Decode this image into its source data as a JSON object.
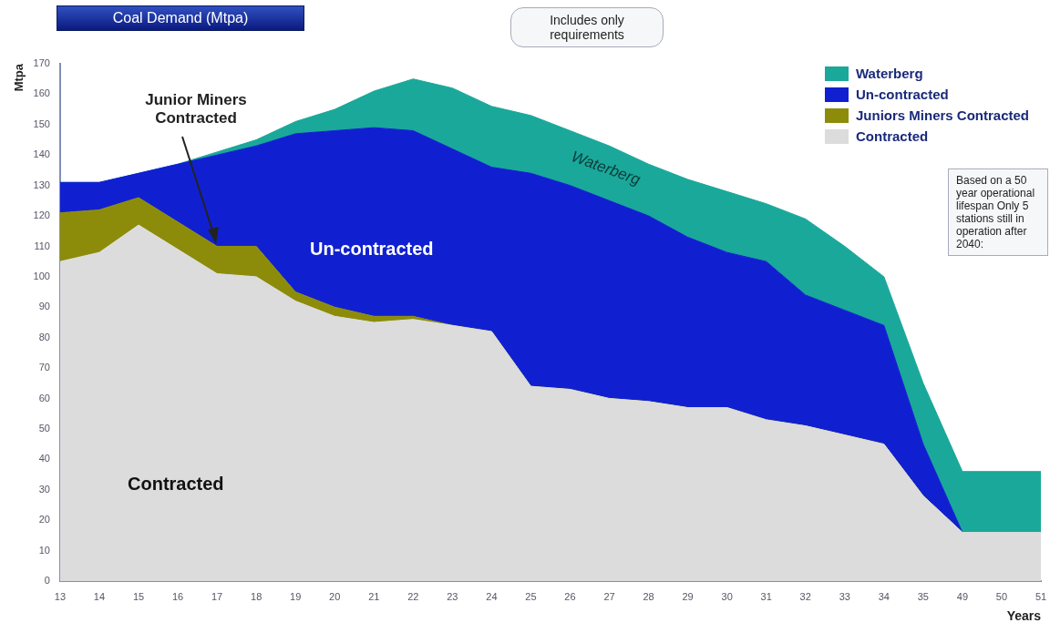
{
  "chart_data": {
    "type": "area",
    "title": "Coal Demand (Mtpa)",
    "ylabel": "Mtpa",
    "xlabel": "Years",
    "categories": [
      "13",
      "14",
      "15",
      "16",
      "17",
      "18",
      "19",
      "20",
      "21",
      "22",
      "23",
      "24",
      "25",
      "26",
      "27",
      "28",
      "29",
      "30",
      "31",
      "32",
      "33",
      "34",
      "35",
      "49",
      "50",
      "51"
    ],
    "stacked": true,
    "ylim": [
      0,
      170
    ],
    "yticks": [
      0,
      10,
      20,
      30,
      40,
      50,
      60,
      70,
      80,
      90,
      100,
      110,
      120,
      130,
      140,
      150,
      160,
      170
    ],
    "grid": false,
    "legend": "top right",
    "series": [
      {
        "name": "Contracted",
        "color": "#dcdcdc",
        "values": [
          105,
          108,
          117,
          109,
          101,
          100,
          92,
          87,
          85,
          86,
          84,
          82,
          64,
          63,
          60,
          59,
          57,
          57,
          53,
          51,
          48,
          45,
          28,
          16,
          16,
          16
        ]
      },
      {
        "name": "Juniors Miners Contracted",
        "color": "#8c8c0a",
        "values": [
          16,
          14,
          9,
          9,
          9,
          10,
          3,
          3,
          2,
          1,
          0,
          0,
          0,
          0,
          0,
          0,
          0,
          0,
          0,
          0,
          0,
          0,
          0,
          0,
          0,
          0
        ]
      },
      {
        "name": "Un-contracted",
        "color": "#1020d0",
        "values": [
          10,
          9,
          8,
          19,
          30,
          33,
          52,
          58,
          62,
          61,
          58,
          54,
          70,
          67,
          65,
          61,
          56,
          51,
          52,
          43,
          41,
          39,
          17,
          0,
          0,
          0
        ]
      },
      {
        "name": "Waterberg",
        "color": "#1aa89a",
        "values": [
          0,
          0,
          0,
          0,
          1,
          2,
          4,
          7,
          12,
          17,
          20,
          20,
          19,
          18,
          18,
          17,
          19,
          20,
          19,
          25,
          21,
          16,
          20,
          20,
          20,
          20
        ]
      }
    ],
    "annotations": [
      "Junior Miners Contracted",
      "Waterberg",
      "Un-contracted",
      "Contracted",
      "Includes only requirements",
      "Based on a 50 year operational lifespan Only 5 stations still in operation after 2040:"
    ]
  }
}
